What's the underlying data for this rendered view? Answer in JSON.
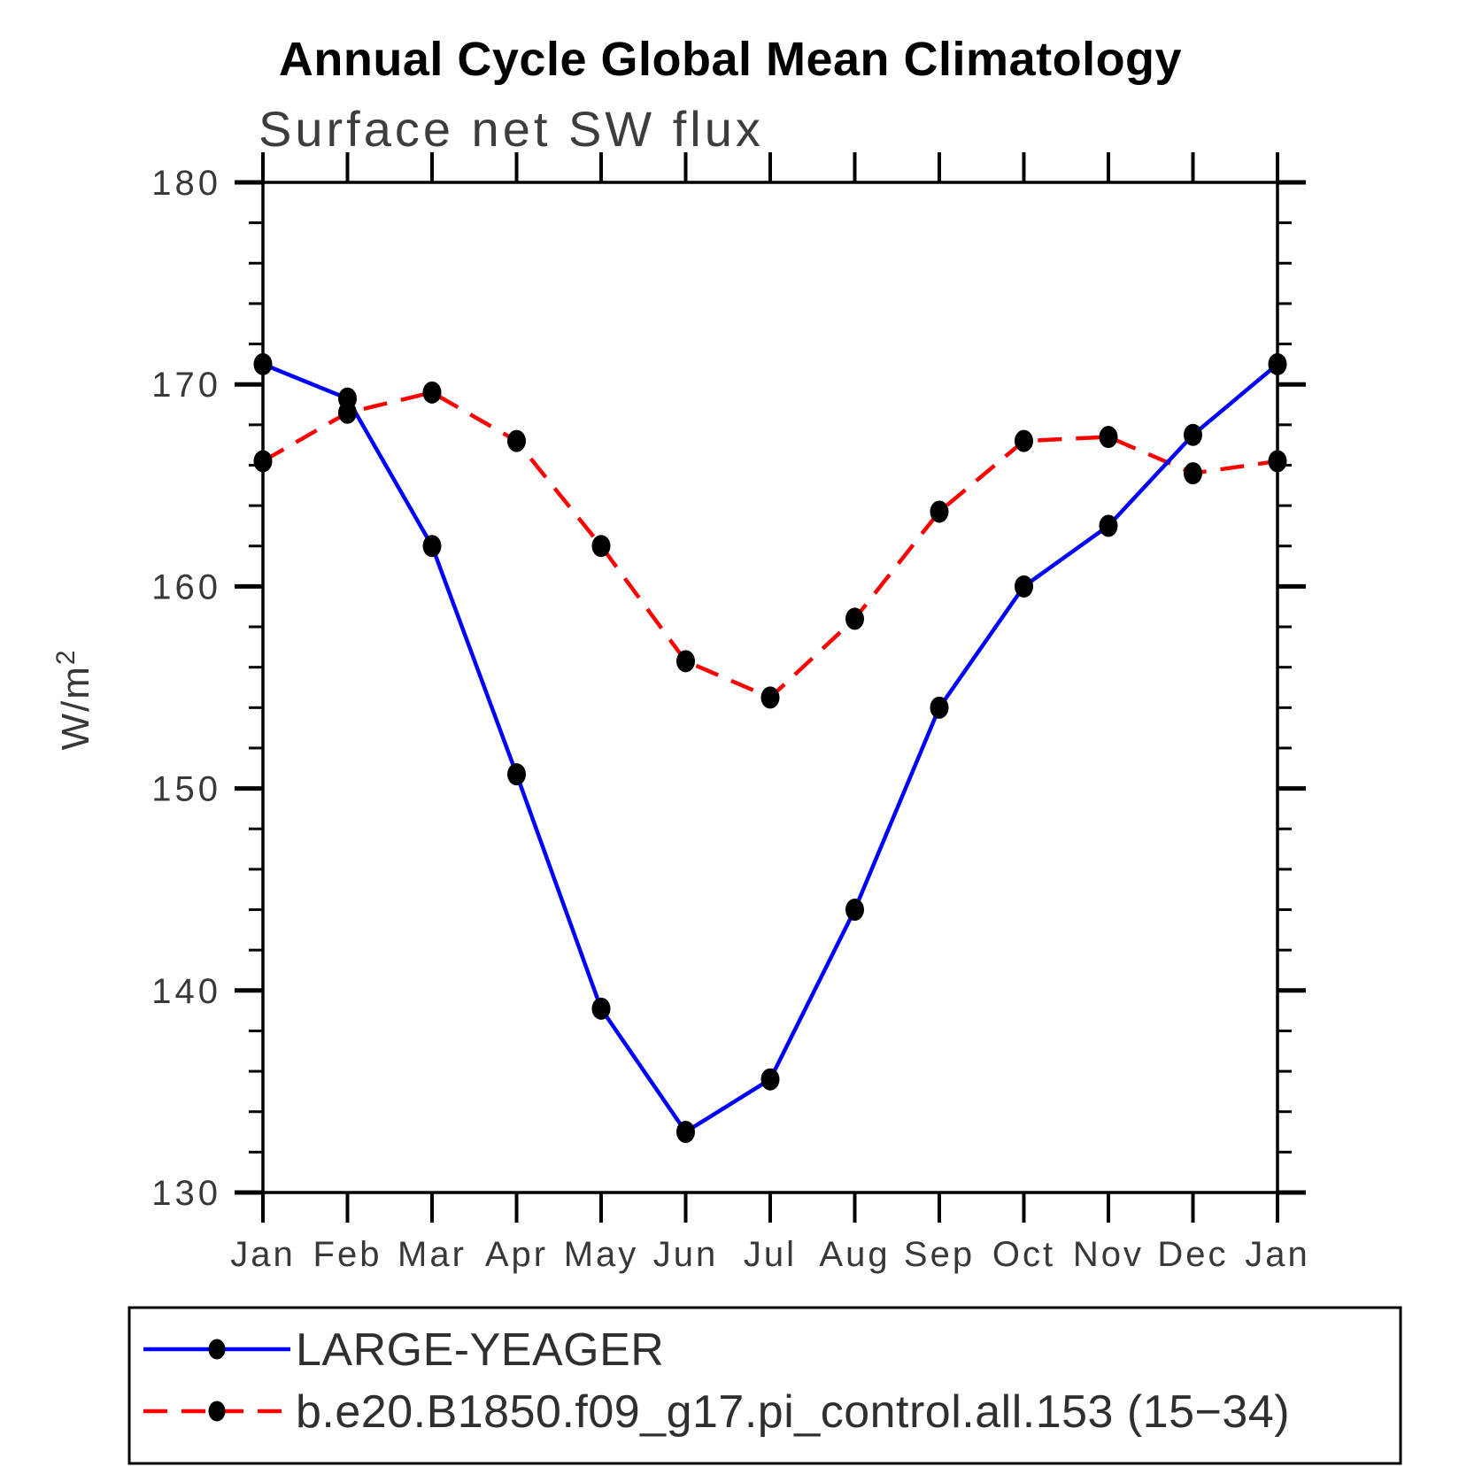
{
  "header": {
    "title": "Annual Cycle Global Mean Climatology",
    "subtitle": "Surface net SW flux"
  },
  "axes": {
    "y": {
      "label_base": "W/m",
      "label_sup": "2",
      "min": 130,
      "max": 180,
      "major_step": 10,
      "minor_step": 2,
      "major_ticks": [
        {
          "value": 180,
          "label": "180"
        },
        {
          "value": 170,
          "label": "170"
        },
        {
          "value": 160,
          "label": "160"
        },
        {
          "value": 150,
          "label": "150"
        },
        {
          "value": 140,
          "label": "140"
        },
        {
          "value": 130,
          "label": "130"
        }
      ]
    },
    "x": {
      "labels": [
        "Jan",
        "Feb",
        "Mar",
        "Apr",
        "May",
        "Jun",
        "Jul",
        "Aug",
        "Sep",
        "Oct",
        "Nov",
        "Dec",
        "Jan"
      ]
    }
  },
  "legend": {
    "entries": [
      {
        "label": "LARGE-YEAGER",
        "color": "#0000ff",
        "style": "solid",
        "marker": "filled-circle"
      },
      {
        "label": "b.e20.B1850.f09_g17.pi_control.all.153 (15−34)",
        "color": "#ff0000",
        "style": "dashed",
        "marker": "filled-circle"
      }
    ]
  },
  "colors": {
    "series1": "#0000ff",
    "series2": "#ff0000",
    "marker": "#000000",
    "axis": "#000000",
    "thin_text": "#383838"
  },
  "chart_data": {
    "type": "line",
    "title": "Annual Cycle Global Mean Climatology",
    "subtitle": "Surface net SW flux",
    "ylabel": "W/m²",
    "xlabel": "",
    "categories": [
      "Jan",
      "Feb",
      "Mar",
      "Apr",
      "May",
      "Jun",
      "Jul",
      "Aug",
      "Sep",
      "Oct",
      "Nov",
      "Dec",
      "Jan"
    ],
    "ylim": [
      130,
      180
    ],
    "ytick_major": 10,
    "ytick_minor": 2,
    "grid": false,
    "legend_position": "bottom",
    "series": [
      {
        "name": "LARGE-YEAGER",
        "color": "#0000ff",
        "line_style": "solid",
        "marker": "filled-circle",
        "marker_color": "#000000",
        "values": [
          171.0,
          169.3,
          162.0,
          150.7,
          139.1,
          133.0,
          135.6,
          144.0,
          154.0,
          160.0,
          163.0,
          167.5,
          171.0
        ]
      },
      {
        "name": "b.e20.B1850.f09_g17.pi_control.all.153 (15−34)",
        "color": "#ff0000",
        "line_style": "dashed",
        "marker": "filled-circle",
        "marker_color": "#000000",
        "values": [
          166.2,
          168.6,
          169.6,
          167.2,
          162.0,
          156.3,
          154.5,
          158.4,
          163.7,
          167.2,
          167.4,
          165.6,
          166.2
        ]
      }
    ]
  }
}
